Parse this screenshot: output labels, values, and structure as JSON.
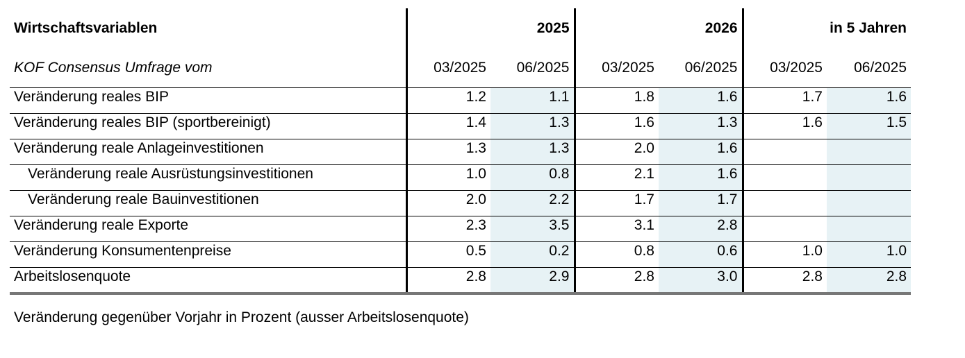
{
  "header": {
    "title": "Wirtschaftsvariablen",
    "groups": [
      "2025",
      "2026",
      "in 5 Jahren"
    ]
  },
  "subheader": {
    "label": "KOF Consensus Umfrage vom",
    "dates": [
      "03/2025",
      "06/2025",
      "03/2025",
      "06/2025",
      "03/2025",
      "06/2025"
    ]
  },
  "rows": [
    {
      "label": "Veränderung reales BIP",
      "values": [
        "1.2",
        "1.1",
        "1.8",
        "1.6",
        "1.7",
        "1.6"
      ]
    },
    {
      "label": "Veränderung reales BIP (sportbereinigt)",
      "values": [
        "1.4",
        "1.3",
        "1.6",
        "1.3",
        "1.6",
        "1.5"
      ]
    },
    {
      "label": "Veränderung reale Anlageinvestitionen",
      "values": [
        "1.3",
        "1.3",
        "2.0",
        "1.6",
        "",
        ""
      ]
    },
    {
      "label": "Veränderung reale Ausrüstungsinvestitionen",
      "values": [
        "1.0",
        "0.8",
        "2.1",
        "1.6",
        "",
        ""
      ]
    },
    {
      "label": "Veränderung reale Bauinvestitionen",
      "values": [
        "2.0",
        "2.2",
        "1.7",
        "1.7",
        "",
        ""
      ]
    },
    {
      "label": "Veränderung reale Exporte",
      "values": [
        "2.3",
        "3.5",
        "3.1",
        "2.8",
        "",
        ""
      ]
    },
    {
      "label": "Veränderung Konsumentenpreise",
      "values": [
        "0.5",
        "0.2",
        "0.8",
        "0.6",
        "1.0",
        "1.0"
      ]
    },
    {
      "label": "Arbeitslosenquote",
      "values": [
        "2.8",
        "2.9",
        "2.8",
        "3.0",
        "2.8",
        "2.8"
      ]
    }
  ],
  "footnote": "Veränderung gegenüber Vorjahr in Prozent (ausser Arbeitslosenquote)",
  "colors": {
    "shaded_column": "#e7f2f5",
    "bottom_rule": "#777777"
  }
}
